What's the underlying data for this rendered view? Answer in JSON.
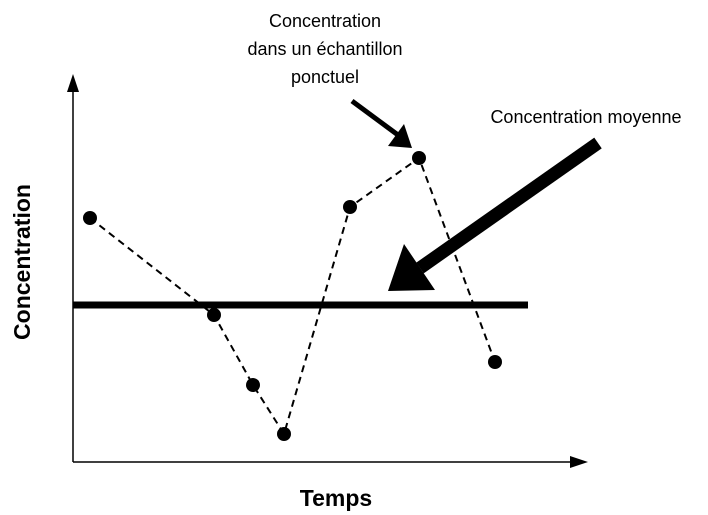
{
  "point_annotation": {
    "lines": [
      "Concentration",
      "dans un échantillon",
      "ponctuel"
    ]
  },
  "mean_annotation": "Concentration moyenne",
  "y_axis_label": "Concentration",
  "x_axis_label": "Temps"
}
